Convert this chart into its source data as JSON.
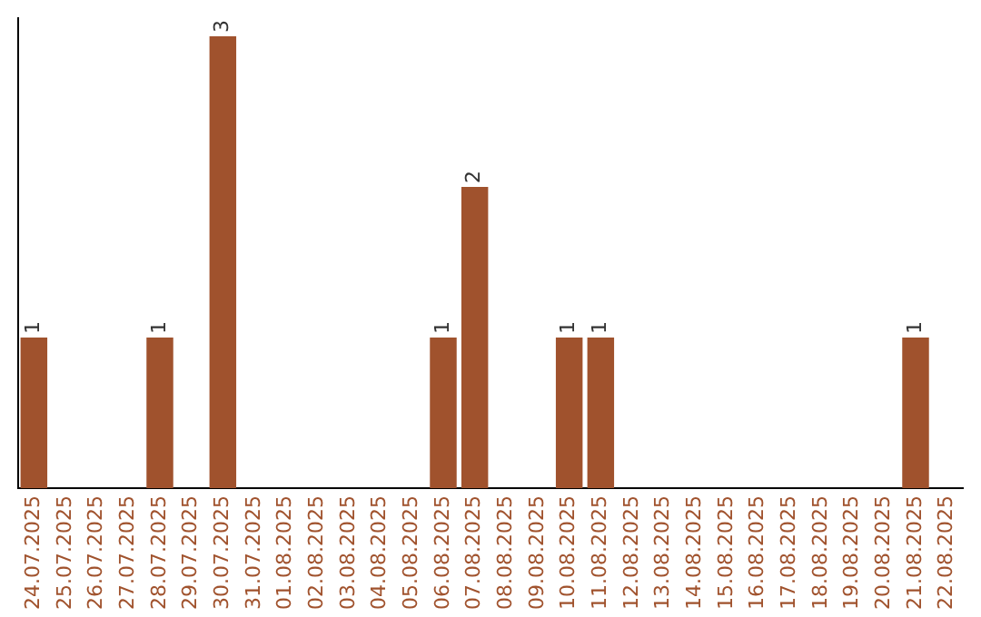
{
  "chart_data": {
    "type": "bar",
    "categories": [
      "24.07.2025",
      "25.07.2025",
      "26.07.2025",
      "27.07.2025",
      "28.07.2025",
      "29.07.2025",
      "30.07.2025",
      "31.07.2025",
      "01.08.2025",
      "02.08.2025",
      "03.08.2025",
      "04.08.2025",
      "05.08.2025",
      "06.08.2025",
      "07.08.2025",
      "08.08.2025",
      "09.08.2025",
      "10.08.2025",
      "11.08.2025",
      "12.08.2025",
      "13.08.2025",
      "14.08.2025",
      "15.08.2025",
      "16.08.2025",
      "17.08.2025",
      "18.08.2025",
      "19.08.2025",
      "20.08.2025",
      "21.08.2025",
      "22.08.2025"
    ],
    "values": [
      1,
      0,
      0,
      0,
      1,
      0,
      3,
      0,
      0,
      0,
      0,
      0,
      0,
      1,
      2,
      0,
      0,
      1,
      1,
      0,
      0,
      0,
      0,
      0,
      0,
      0,
      0,
      0,
      1,
      0
    ],
    "value_labels": [
      "1",
      null,
      null,
      null,
      "1",
      null,
      "3",
      null,
      null,
      null,
      null,
      null,
      null,
      "1",
      "2",
      null,
      null,
      "1",
      "1",
      null,
      null,
      null,
      null,
      null,
      null,
      null,
      null,
      null,
      "1",
      null
    ],
    "color": "#a0522d",
    "tick_labels": "x",
    "grid": false,
    "legend": false
  }
}
